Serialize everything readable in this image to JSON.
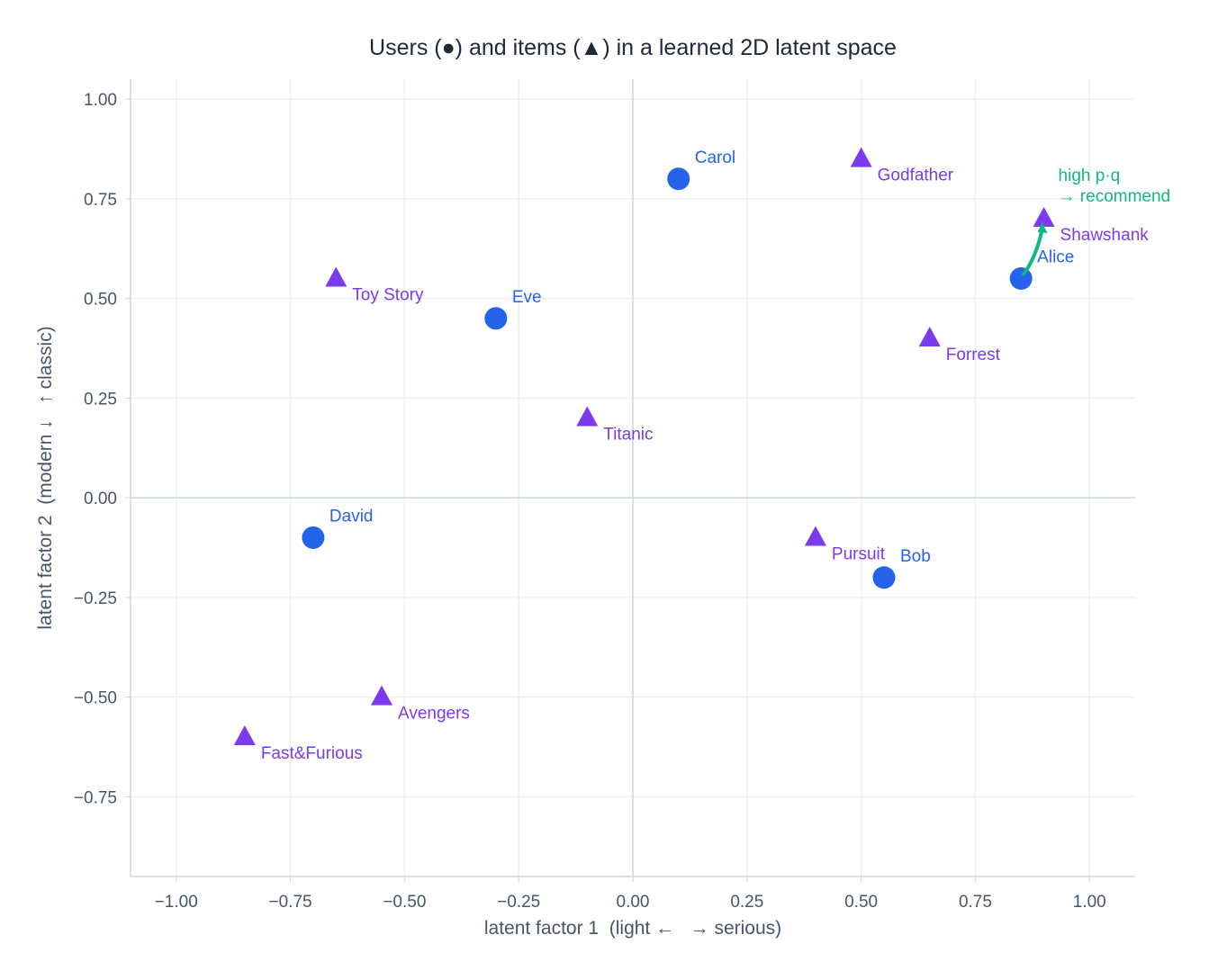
{
  "chart_data": {
    "type": "scatter",
    "title": "Users (●) and items (▲) in a learned 2D latent space",
    "xlabel": "latent factor 1  (light ←   → serious)",
    "ylabel": "latent factor 2  (modern ↓   ↑ classic)",
    "xlim": [
      -1.1,
      1.1
    ],
    "ylim": [
      -0.95,
      1.05
    ],
    "xticks": [
      -1.0,
      -0.75,
      -0.5,
      -0.25,
      0.0,
      0.25,
      0.5,
      0.75,
      1.0
    ],
    "xtick_labels": [
      "−1.00",
      "−0.75",
      "−0.50",
      "−0.25",
      "0.00",
      "0.25",
      "0.50",
      "0.75",
      "1.00"
    ],
    "yticks": [
      1.0,
      0.75,
      0.5,
      0.25,
      0.0,
      -0.25,
      -0.5,
      -0.75
    ],
    "ytick_labels": [
      "1.00",
      "0.75",
      "0.50",
      "0.25",
      "0.00",
      "−0.25",
      "−0.50",
      "−0.75"
    ],
    "grid": true,
    "series": [
      {
        "marker": "circle",
        "color": "#2563eb",
        "points": [
          {
            "label": "Alice",
            "x": 0.85,
            "y": 0.55
          },
          {
            "label": "Bob",
            "x": 0.55,
            "y": -0.2
          },
          {
            "label": "Carol",
            "x": 0.1,
            "y": 0.8
          },
          {
            "label": "David",
            "x": -0.7,
            "y": -0.1
          },
          {
            "label": "Eve",
            "x": -0.3,
            "y": 0.45
          }
        ]
      },
      {
        "marker": "triangle",
        "color": "#7c3aed",
        "points": [
          {
            "label": "Godfather",
            "x": 0.5,
            "y": 0.85
          },
          {
            "label": "Shawshank",
            "x": 0.9,
            "y": 0.7
          },
          {
            "label": "Forrest",
            "x": 0.65,
            "y": 0.4
          },
          {
            "label": "Toy Story",
            "x": -0.65,
            "y": 0.55
          },
          {
            "label": "Titanic",
            "x": -0.1,
            "y": 0.2
          },
          {
            "label": "Pursuit",
            "x": 0.4,
            "y": -0.1
          },
          {
            "label": "Avengers",
            "x": -0.55,
            "y": -0.5
          },
          {
            "label": "Fast&Furious",
            "x": -0.85,
            "y": -0.6
          }
        ]
      }
    ],
    "annotation": {
      "lines": [
        "high p·q",
        "→ recommend"
      ],
      "from": {
        "x": 0.85,
        "y": 0.55
      },
      "to": {
        "x": 0.9,
        "y": 0.7
      },
      "color": "#10b981"
    }
  }
}
